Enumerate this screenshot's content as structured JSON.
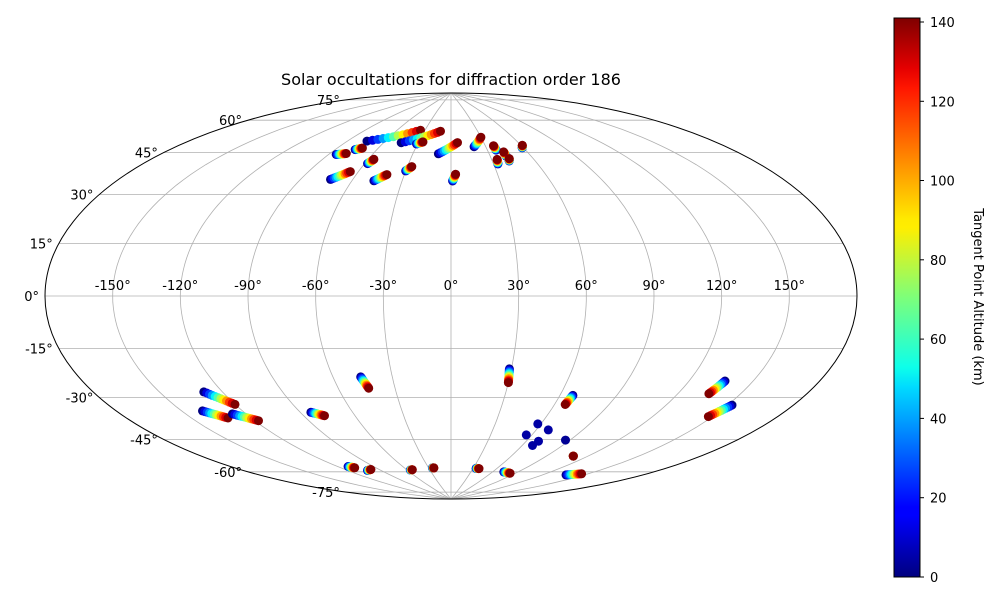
{
  "chart_data": {
    "type": "scatter",
    "projection": "aitoff",
    "title": "Solar occultations for diffraction order 186",
    "x_ticks": [
      "-150°",
      "-120°",
      "-90°",
      "-60°",
      "-30°",
      "0°",
      "30°",
      "60°",
      "90°",
      "120°",
      "150°"
    ],
    "x_tick_values": [
      -150,
      -120,
      -90,
      -60,
      -30,
      0,
      30,
      60,
      90,
      120,
      150
    ],
    "y_ticks": [
      "75°",
      "60°",
      "45°",
      "30°",
      "15°",
      "0°",
      "-15°",
      "-30°",
      "-45°",
      "-60°",
      "-75°"
    ],
    "y_tick_values": [
      75,
      60,
      45,
      30,
      15,
      0,
      -15,
      -30,
      -45,
      -60,
      -75
    ],
    "xlim": [
      -180,
      180
    ],
    "ylim": [
      -90,
      90
    ],
    "grid": true,
    "colorbar": {
      "label": "Tangent Point Altitude (km)",
      "min": 0,
      "max": 141,
      "ticks": [
        "0",
        "20",
        "40",
        "60",
        "80",
        "100",
        "120",
        "140"
      ],
      "tick_values": [
        0,
        20,
        40,
        60,
        80,
        100,
        120,
        140
      ],
      "colormap": "jet"
    },
    "occultations": [
      {
        "lon0": -85,
        "lat0": 59,
        "lon1": -79,
        "lat1": 60
      },
      {
        "lon0": -76,
        "lat0": 62,
        "lon1": -72,
        "lat1": 63
      },
      {
        "lon0": -75,
        "lat0": 66,
        "lon1": -35,
        "lat1": 73
      },
      {
        "lon0": -58,
        "lat0": 57,
        "lon1": -56,
        "lat1": 59
      },
      {
        "lon0": -45,
        "lat0": 67,
        "lon1": -12,
        "lat1": 73
      },
      {
        "lon0": -31,
        "lat0": 67,
        "lon1": -26,
        "lat1": 68
      },
      {
        "lon0": -73,
        "lat0": 49,
        "lon1": -65,
        "lat1": 53
      },
      {
        "lon0": -47,
        "lat0": 50,
        "lon1": -41,
        "lat1": 53
      },
      {
        "lon0": -30,
        "lat0": 55,
        "lon1": -27,
        "lat1": 57
      },
      {
        "lon0": -10,
        "lat0": 63,
        "lon1": 6,
        "lat1": 68
      },
      {
        "lon0": 1,
        "lat0": 51,
        "lon1": 3,
        "lat1": 54
      },
      {
        "lon0": 20,
        "lat0": 66,
        "lon1": 30,
        "lat1": 70
      },
      {
        "lon0": 37,
        "lat0": 64,
        "lon1": 37,
        "lat1": 66
      },
      {
        "lon0": 33,
        "lat0": 58,
        "lon1": 34,
        "lat1": 60
      },
      {
        "lon0": 42,
        "lat0": 61,
        "lon1": 42,
        "lat1": 63
      },
      {
        "lon0": 42,
        "lat0": 59,
        "lon1": 43,
        "lat1": 60
      },
      {
        "lon0": 59,
        "lat0": 64,
        "lon1": 61,
        "lat1": 65
      },
      {
        "lon0": -140,
        "lat0": -41,
        "lon1": -132,
        "lat1": -45
      },
      {
        "lon0": -129,
        "lat0": -35,
        "lon1": -120,
        "lat1": -41
      },
      {
        "lon0": -127,
        "lat0": -44,
        "lon1": -118,
        "lat1": -48
      },
      {
        "lon0": -84,
        "lat0": -48,
        "lon1": -78,
        "lat1": -50
      },
      {
        "lon0": -46,
        "lat0": -35,
        "lon1": -44,
        "lat1": -40
      },
      {
        "lon0": 29,
        "lat0": -32,
        "lon1": 30,
        "lat1": -38
      },
      {
        "lon0": 67,
        "lat0": -42,
        "lon1": 66,
        "lat1": -46
      },
      {
        "lon0": 137,
        "lat0": -30,
        "lon1": 135,
        "lat1": -35
      },
      {
        "lon0": 152,
        "lat0": -37,
        "lon1": 148,
        "lat1": -42
      },
      {
        "lon0": -112,
        "lat0": -70,
        "lon1": -109,
        "lat1": -71
      },
      {
        "lon0": -103,
        "lat0": -73,
        "lon1": -98,
        "lat1": -73
      },
      {
        "lon0": -56,
        "lat0": -76,
        "lon1": -53,
        "lat1": -76
      },
      {
        "lon0": -25,
        "lat0": -76,
        "lon1": -23,
        "lat1": -76
      },
      {
        "lon0": 34,
        "lat0": -76,
        "lon1": 38,
        "lat1": -76
      },
      {
        "lon0": 74,
        "lat0": -76,
        "lon1": 84,
        "lat1": -76
      },
      {
        "lon0": 138,
        "lat0": -71,
        "lon1": 146,
        "lat1": -69
      },
      {
        "lon0": 110,
        "lat0": -65,
        "lon1": 110,
        "lat1": -65
      }
    ],
    "single_points": [
      {
        "lon": 58,
        "lat": -55,
        "alt": 5
      },
      {
        "lon": 56,
        "lat": -60,
        "alt": 5
      },
      {
        "lon": 68,
        "lat": -57,
        "alt": 5
      },
      {
        "lon": 69,
        "lat": -62,
        "alt": 5
      },
      {
        "lon": 68,
        "lat": -64,
        "alt": 5
      },
      {
        "lon": 87,
        "lat": -60,
        "alt": 3
      }
    ]
  }
}
